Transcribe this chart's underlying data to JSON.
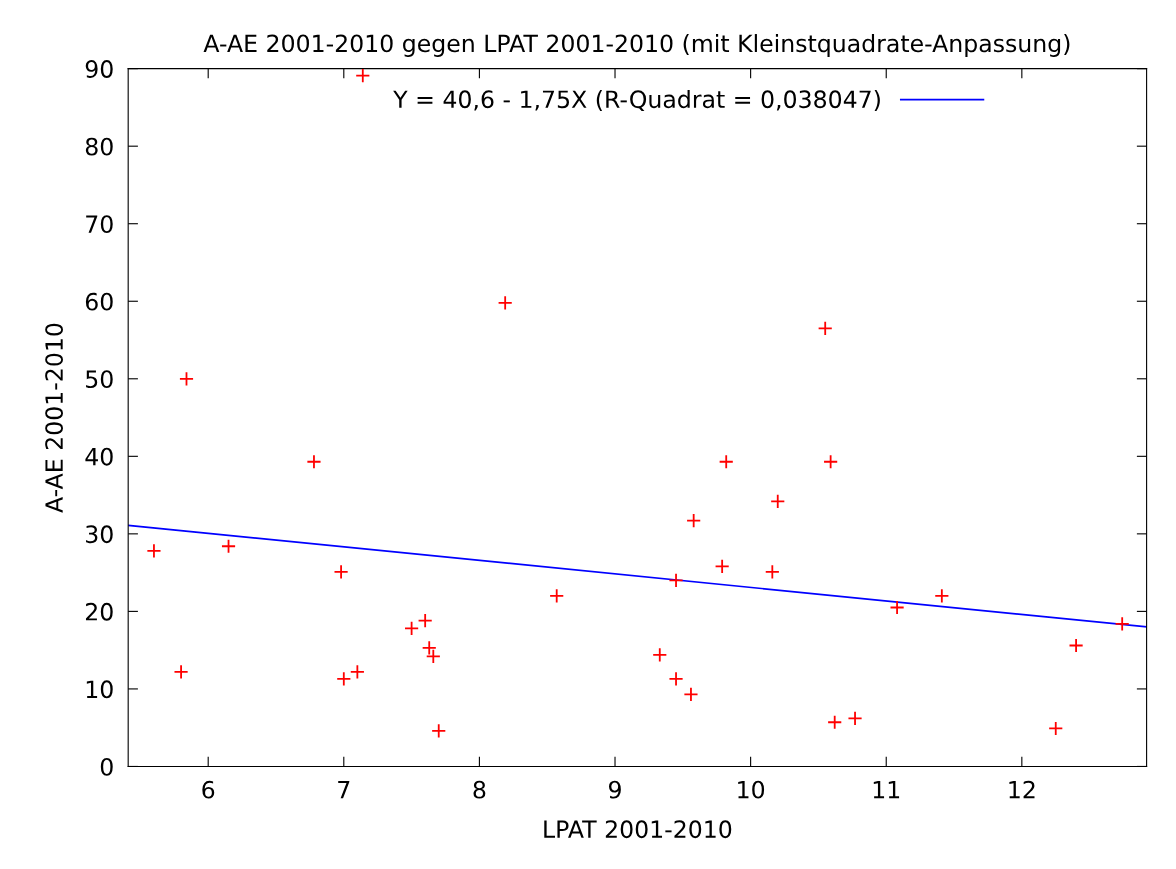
{
  "chart_data": {
    "type": "scatter",
    "title": "A-AE 2001-2010 gegen LPAT 2001-2010 (mit Kleinstquadrate-Anpassung)",
    "xlabel": "LPAT 2001-2010",
    "ylabel": "A-AE 2001-2010",
    "xlim": [
      5.41,
      12.92
    ],
    "ylim": [
      0,
      90
    ],
    "xticks": [
      6,
      7,
      8,
      9,
      10,
      11,
      12
    ],
    "yticks": [
      0,
      10,
      20,
      30,
      40,
      50,
      60,
      70,
      80,
      90
    ],
    "grid": false,
    "legend": "top",
    "series": [
      {
        "color": "#ff0000",
        "marker": "cross",
        "x": [
          5.6,
          5.8,
          5.84,
          6.15,
          6.78,
          6.98,
          7.0,
          7.1,
          7.14,
          7.5,
          7.6,
          7.63,
          7.66,
          7.7,
          8.19,
          8.57,
          9.33,
          9.45,
          9.45,
          9.56,
          9.58,
          9.79,
          9.82,
          10.16,
          10.2,
          10.55,
          10.59,
          10.62,
          10.77,
          11.08,
          11.41,
          12.25,
          12.4,
          12.74
        ],
        "values": [
          27.8,
          12.2,
          50.0,
          28.4,
          39.3,
          25.1,
          11.3,
          12.2,
          89.1,
          17.8,
          18.8,
          15.3,
          14.2,
          4.6,
          59.8,
          22.0,
          14.4,
          24.0,
          11.3,
          9.3,
          31.7,
          25.8,
          39.3,
          25.1,
          34.2,
          56.5,
          39.3,
          5.7,
          6.2,
          20.5,
          22.0,
          4.9,
          15.6,
          18.4
        ]
      },
      {
        "type": "line",
        "name": "Y = 40,6 - 1,75X (R-Quadrat = 0,038047)",
        "color": "#0000ff",
        "x": [
          5.41,
          12.92
        ],
        "marker": "none",
        "values": [
          31.1,
          18.0
        ]
      }
    ]
  }
}
